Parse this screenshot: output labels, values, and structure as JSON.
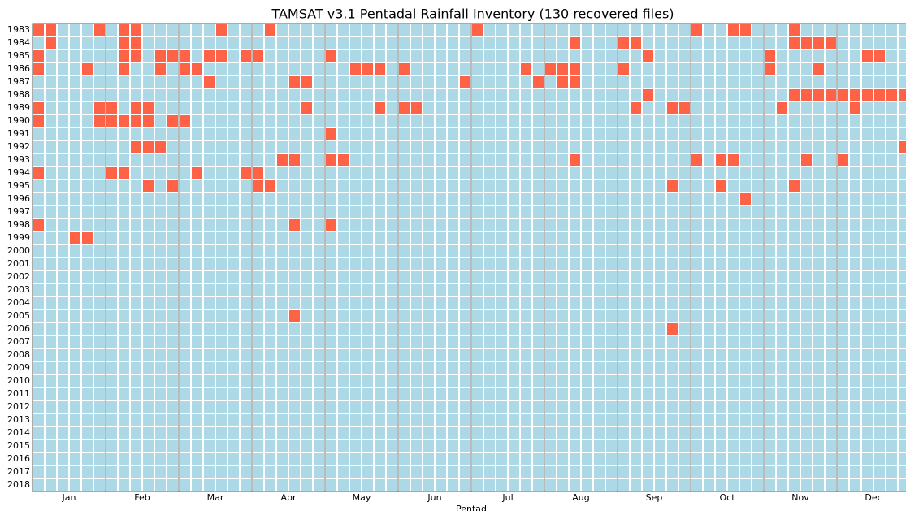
{
  "chart_data": {
    "type": "heatmap",
    "title": "TAMSAT v3.1 Pentadal Rainfall Inventory (130 recovered files)",
    "xlabel": "Pentad",
    "months": [
      "Jan",
      "Feb",
      "Mar",
      "Apr",
      "May",
      "Jun",
      "Jul",
      "Aug",
      "Sep",
      "Oct",
      "Nov",
      "Dec"
    ],
    "years": [
      1983,
      1984,
      1985,
      1986,
      1987,
      1988,
      1989,
      1990,
      1991,
      1992,
      1993,
      1994,
      1995,
      1996,
      1997,
      1998,
      1999,
      2000,
      2001,
      2002,
      2003,
      2004,
      2005,
      2006,
      2007,
      2008,
      2009,
      2010,
      2011,
      2012,
      2013,
      2014,
      2015,
      2016,
      2017,
      2018
    ],
    "missing_color": "#add8e6",
    "recovered_color": "#ff6347",
    "recovered": [
      [
        0,
        1,
        5,
        7,
        8,
        15,
        19,
        36,
        54,
        57,
        58,
        62
      ],
      [
        1,
        7,
        8,
        44,
        48,
        49,
        62,
        63,
        64,
        65
      ],
      [
        0,
        7,
        8,
        10,
        11,
        12,
        14,
        15,
        17,
        18,
        24,
        50,
        60,
        68,
        69
      ],
      [
        0,
        4,
        7,
        10,
        12,
        13,
        26,
        27,
        28,
        30,
        40,
        42,
        43,
        44,
        48,
        60,
        64
      ],
      [
        14,
        21,
        22,
        35,
        41,
        43,
        44
      ],
      [
        50,
        62,
        63,
        64,
        65,
        66,
        67,
        68,
        69,
        70,
        71
      ],
      [
        0,
        5,
        6,
        8,
        9,
        22,
        28,
        30,
        31,
        49,
        52,
        53,
        61,
        67
      ],
      [
        0,
        5,
        6,
        7,
        8,
        9,
        11,
        12
      ],
      [
        24
      ],
      [
        8,
        9,
        10,
        71
      ],
      [
        20,
        21,
        24,
        25,
        44,
        54,
        56,
        57,
        63,
        66
      ],
      [
        0,
        6,
        7,
        13,
        17,
        18
      ],
      [
        9,
        11,
        18,
        19,
        52,
        56,
        62
      ],
      [
        58
      ],
      [],
      [
        0,
        21,
        24
      ],
      [
        3,
        4
      ],
      [],
      [],
      [],
      [],
      [],
      [
        21
      ],
      [
        52
      ],
      [],
      [],
      [],
      [],
      [],
      [],
      [],
      [],
      [],
      [],
      [],
      []
    ]
  }
}
